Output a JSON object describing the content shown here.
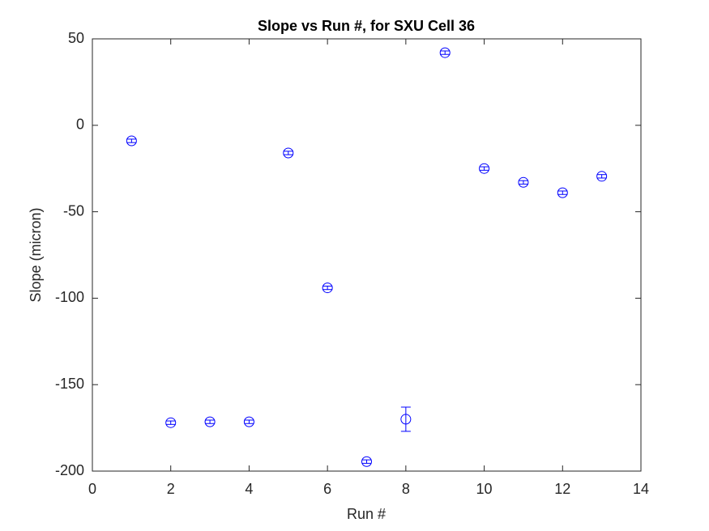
{
  "chart_data": {
    "type": "errorbar",
    "title": "Slope vs Run #, for SXU Cell 36",
    "xlabel": "Run #",
    "ylabel": "Slope (micron)",
    "x": [
      1,
      2,
      3,
      4,
      5,
      6,
      7,
      8,
      9,
      10,
      11,
      12,
      13
    ],
    "values": [
      -9,
      -172,
      -171.5,
      -171.5,
      -16,
      -94,
      -194.5,
      -170,
      42,
      -25,
      -33,
      -39,
      -29.5
    ],
    "errors": [
      1,
      1,
      1,
      1,
      1,
      1,
      1,
      7,
      1,
      1,
      1,
      1,
      1
    ],
    "color": "#0000ff",
    "xlim": [
      0,
      14
    ],
    "xticks": [
      0,
      2,
      4,
      6,
      8,
      10,
      12,
      14
    ],
    "ylim": [
      -200,
      50
    ],
    "yticks": [
      -200,
      -150,
      -100,
      -50,
      0,
      50
    ]
  }
}
